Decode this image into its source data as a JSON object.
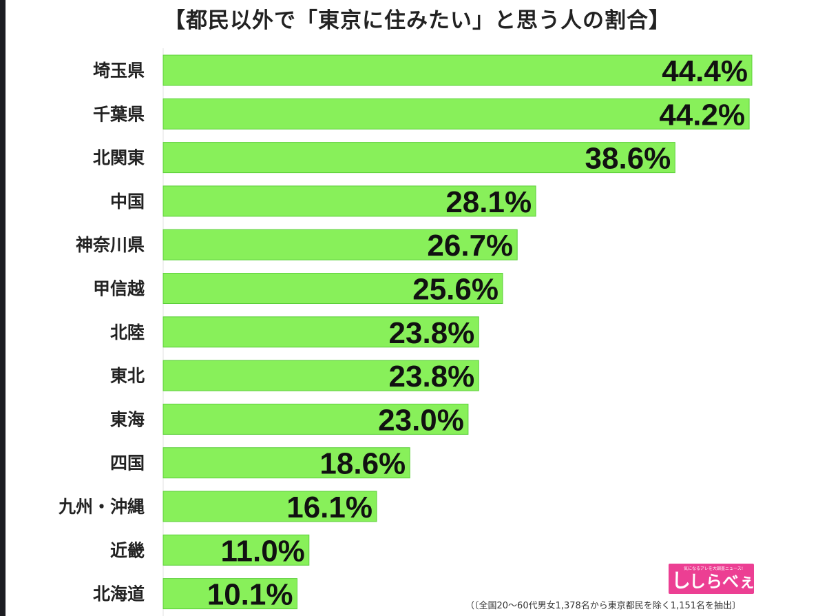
{
  "title": "【都民以外で「東京に住みたい」と思う人の割合】",
  "chart_data": {
    "type": "bar",
    "orientation": "horizontal",
    "title": "【都民以外で「東京に住みたい」と思う人の割合】",
    "categories": [
      "埼玉県",
      "千葉県",
      "北関東",
      "中国",
      "神奈川県",
      "甲信越",
      "北陸",
      "東北",
      "東海",
      "四国",
      "九州・沖縄",
      "近畿",
      "北海道"
    ],
    "values": [
      44.4,
      44.2,
      38.6,
      28.1,
      26.7,
      25.6,
      23.8,
      23.8,
      23.0,
      18.6,
      16.1,
      11.0,
      10.1
    ],
    "value_labels": [
      "44.4%",
      "44.2%",
      "38.6%",
      "28.1%",
      "26.7%",
      "25.6%",
      "23.8%",
      "23.8%",
      "23.0%",
      "18.6%",
      "16.1%",
      "11.0%",
      "10.1%"
    ],
    "xlim": [
      0,
      44.4
    ],
    "grid": false,
    "bar_color": "#88f05a"
  },
  "logo": {
    "text": "しらべぇ",
    "mark": "し",
    "tagline": "気になるアレを大調査ニュース!",
    "color": "#ec3f93"
  },
  "footnote": "（〔全国20〜60代男女1,378名から東京都民を除く1,151名を抽出〕"
}
